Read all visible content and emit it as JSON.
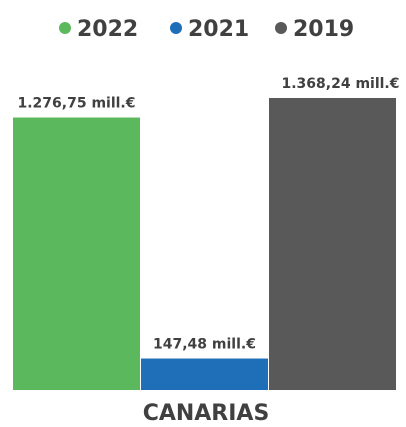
{
  "chart_data": {
    "type": "bar",
    "categories": [
      "CANARIAS"
    ],
    "series": [
      {
        "name": "2022",
        "values": [
          1276.75
        ],
        "color": "#5CB85C",
        "label": "1.276,75 mill.€"
      },
      {
        "name": "2021",
        "values": [
          147.48
        ],
        "color": "#1F6FB8",
        "label": "147,48 mill.€"
      },
      {
        "name": "2019",
        "values": [
          1368.24
        ],
        "color": "#595959",
        "label": "1.368,24 mill.€"
      }
    ],
    "unit": "mill.€",
    "ylim": [
      0,
      1368.24
    ],
    "legend_position": "top",
    "grid": false,
    "axes_visible": false
  }
}
